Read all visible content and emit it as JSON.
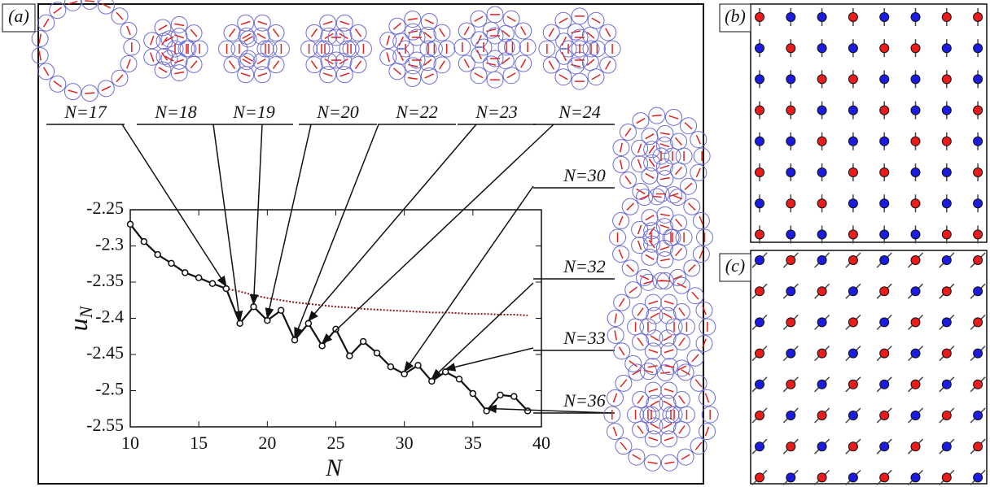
{
  "panels": {
    "a": "(a)",
    "b": "(b)",
    "c": "(c)"
  },
  "chart_data": {
    "type": "line",
    "x_label": "N",
    "y_label": [
      "u",
      "N"
    ],
    "x": [
      10,
      11,
      12,
      13,
      14,
      15,
      16,
      17,
      18,
      19,
      20,
      21,
      22,
      23,
      24,
      25,
      26,
      27,
      28,
      29,
      30,
      31,
      32,
      33,
      34,
      35,
      36,
      37,
      38,
      39
    ],
    "series": [
      {
        "color": "#111111",
        "markers": true,
        "values": [
          -2.27,
          -2.294,
          -2.312,
          -2.324,
          -2.337,
          -2.344,
          -2.352,
          -2.359,
          -2.407,
          -2.384,
          -2.403,
          -2.389,
          -2.43,
          -2.407,
          -2.438,
          -2.415,
          -2.452,
          -2.432,
          -2.448,
          -2.467,
          -2.477,
          -2.465,
          -2.487,
          -2.474,
          -2.484,
          -2.504,
          -2.528,
          -2.506,
          -2.508,
          -2.528
        ]
      },
      {
        "color": "#8b1a1a",
        "style": "dotted",
        "values": [
          -2.27,
          -2.294,
          -2.312,
          -2.324,
          -2.337,
          -2.344,
          -2.352,
          -2.359,
          -2.363,
          -2.368,
          -2.372,
          -2.375,
          -2.378,
          -2.38,
          -2.382,
          -2.384,
          -2.385,
          -2.387,
          -2.388,
          -2.389,
          -2.39,
          -2.391,
          -2.392,
          -2.392,
          -2.393,
          -2.394,
          -2.394,
          -2.395,
          -2.395,
          -2.396
        ]
      }
    ],
    "xlim": [
      10,
      40
    ],
    "ylim": [
      -2.55,
      -2.25
    ],
    "xticks": [
      10,
      15,
      20,
      25,
      30,
      35,
      40
    ],
    "yticks": [
      -2.25,
      -2.3,
      -2.35,
      -2.4,
      -2.45,
      -2.5,
      -2.55
    ],
    "annotations": [
      "N=17",
      "N=18",
      "N=19",
      "N=20",
      "N=22",
      "N=23",
      "N=24",
      "N=30",
      "N=32",
      "N=33",
      "N=36"
    ]
  }
}
